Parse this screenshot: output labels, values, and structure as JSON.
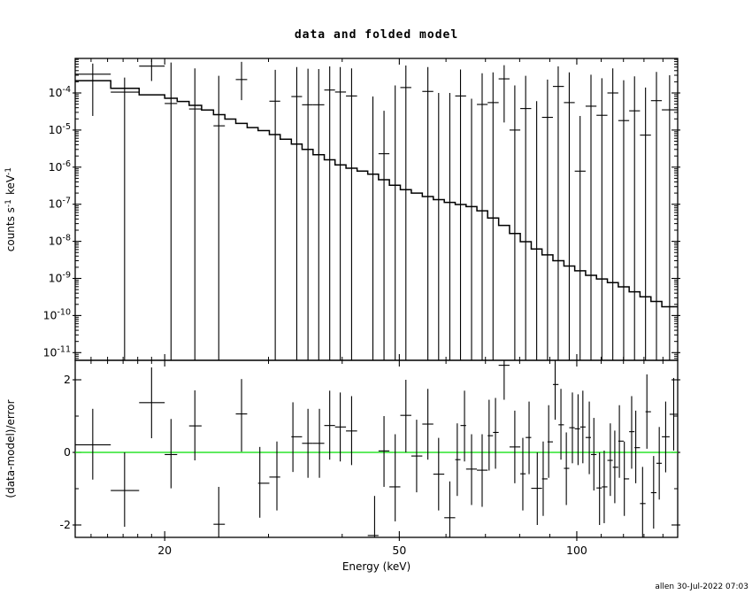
{
  "title": "data and folded model",
  "timestamp": "allen 30-Jul-2022 07:03",
  "chart_data": {
    "type": "line",
    "title": "data and folded model",
    "description": "X-ray spectrum: data points with error bars and folded model histogram (top, log-log), plus (data-model)/error residuals (bottom). Green line marks zero residual.",
    "x_axis": {
      "label": "Energy (keV)",
      "scale": "log",
      "range": [
        14.1,
        148.3
      ],
      "ticks": [
        20,
        50,
        100
      ],
      "tick_labels": [
        "20",
        "50",
        "100"
      ],
      "minor_ticks": [
        15,
        16,
        17,
        18,
        19,
        30,
        40,
        60,
        70,
        80,
        90,
        110,
        120,
        130,
        140
      ]
    },
    "top_panel": {
      "ylabel_parts": [
        [
          "counts s",
          false
        ],
        [
          "-1",
          true
        ],
        [
          " keV",
          false
        ],
        [
          "-1",
          true
        ]
      ],
      "scale": "log",
      "log_range": [
        -11.21,
        -3.07
      ],
      "decade_ticks": [
        -4,
        -5,
        -6,
        -7,
        -8,
        -9,
        -10,
        -11
      ],
      "decade_tick_labels": [
        "-4",
        "-5",
        "-6",
        "-7",
        "-8",
        "-9",
        "-10",
        "-11"
      ],
      "model_color": "#000000",
      "model_anchors": [
        [
          14.1,
          -3.59
        ],
        [
          16.2,
          -3.75
        ],
        [
          18.1,
          -4.0
        ],
        [
          20,
          -4.1
        ],
        [
          22,
          -4.27
        ],
        [
          24,
          -4.5
        ],
        [
          26,
          -4.72
        ],
        [
          28,
          -4.92
        ],
        [
          30,
          -5.05
        ],
        [
          33,
          -5.33
        ],
        [
          36,
          -5.62
        ],
        [
          40,
          -5.96
        ],
        [
          45,
          -6.18
        ],
        [
          50,
          -6.55
        ],
        [
          55,
          -6.76
        ],
        [
          60,
          -6.93
        ],
        [
          68,
          -7.1
        ],
        [
          75,
          -7.55
        ],
        [
          84,
          -8.14
        ],
        [
          95,
          -8.6
        ],
        [
          105,
          -8.9
        ],
        [
          118,
          -9.17
        ],
        [
          133,
          -9.55
        ],
        [
          148.3,
          -9.85
        ]
      ],
      "model_bin_edges": [
        14.1,
        16.2,
        18.1,
        20.0,
        21.0,
        22.0,
        23.1,
        24.2,
        25.3,
        26.4,
        27.6,
        28.8,
        30.1,
        31.4,
        32.8,
        34.2,
        35.7,
        37.3,
        38.9,
        40.6,
        42.4,
        44.2,
        46.1,
        48.1,
        50.2,
        52.4,
        54.7,
        57.1,
        59.6,
        62.2,
        64.9,
        67.7,
        70.6,
        73.7,
        76.9,
        80.2,
        83.7,
        87.3,
        91.1,
        95.1,
        99.2,
        103.5,
        108.0,
        112.7,
        117.6,
        122.7,
        128.0,
        133.6,
        139.4,
        148.3
      ],
      "points_columns": [
        "energy_keV",
        "e_lo",
        "e_hi",
        "flux",
        "err_top",
        "err_bottom_null_means_clipped"
      ],
      "points": [
        [
          15.1,
          14.1,
          16.2,
          0.00032,
          0.00062,
          2.4e-05
        ],
        [
          17.1,
          16.2,
          18.1,
          0.000105,
          0.00026,
          null
        ],
        [
          19.0,
          18.1,
          20.0,
          0.00053,
          0.00078,
          0.00021
        ],
        [
          20.5,
          20.0,
          21.0,
          5.2e-05,
          0.00066,
          null
        ],
        [
          22.5,
          22.0,
          23.1,
          3.7e-05,
          0.00046,
          null
        ],
        [
          24.7,
          24.2,
          25.3,
          1.3e-05,
          0.00029,
          null
        ],
        [
          27.0,
          26.4,
          27.6,
          0.00023,
          0.00069,
          6.4e-05
        ],
        [
          30.8,
          30.1,
          31.4,
          6e-05,
          0.00042,
          null
        ],
        [
          33.5,
          32.8,
          34.2,
          8e-05,
          0.0005,
          null
        ],
        [
          35.0,
          34.2,
          35.7,
          4.8e-05,
          0.00045,
          null
        ],
        [
          36.5,
          35.7,
          37.3,
          4.8e-05,
          0.00044,
          null
        ],
        [
          38.1,
          37.3,
          38.9,
          0.00012,
          0.00052,
          null
        ],
        [
          39.7,
          38.9,
          40.6,
          0.000106,
          0.0005,
          null
        ],
        [
          41.5,
          40.6,
          42.4,
          8.3e-05,
          0.00046,
          null
        ],
        [
          45.1,
          44.2,
          46.1,
          null,
          8e-05,
          null
        ],
        [
          47.1,
          46.1,
          48.1,
          2.3e-06,
          3.3e-05,
          null
        ],
        [
          49.2,
          48.1,
          50.2,
          null,
          0.00016,
          null
        ],
        [
          51.3,
          50.2,
          52.4,
          0.00014,
          0.00055,
          null
        ],
        [
          55.9,
          54.7,
          57.1,
          0.00011,
          0.0005,
          null
        ],
        [
          58.3,
          57.1,
          59.6,
          null,
          0.0001,
          null
        ],
        [
          60.9,
          59.6,
          62.2,
          null,
          0.0001,
          null
        ],
        [
          63.5,
          62.2,
          64.9,
          8.3e-05,
          0.00043,
          null
        ],
        [
          66.3,
          64.9,
          67.7,
          null,
          7e-05,
          null
        ],
        [
          69.1,
          67.7,
          70.6,
          4.9e-05,
          0.00034,
          null
        ],
        [
          72.1,
          70.6,
          73.7,
          5.5e-05,
          0.00036,
          null
        ],
        [
          75.3,
          73.7,
          76.9,
          0.00024,
          0.00056,
          1.6e-05
        ],
        [
          78.5,
          76.9,
          80.2,
          1e-05,
          0.00016,
          null
        ],
        [
          81.9,
          80.2,
          83.7,
          3.8e-05,
          0.00029,
          null
        ],
        [
          85.5,
          83.7,
          87.3,
          null,
          6e-05,
          null
        ],
        [
          89.2,
          87.3,
          91.1,
          2.2e-05,
          0.00023,
          null
        ],
        [
          93.0,
          91.1,
          95.1,
          0.00015,
          0.00052,
          null
        ],
        [
          97.1,
          95.1,
          99.2,
          5.5e-05,
          0.00036,
          null
        ],
        [
          101.3,
          99.2,
          103.5,
          7.8e-07,
          2.4e-05,
          null
        ],
        [
          105.7,
          103.5,
          108.0,
          4.4e-05,
          0.00031,
          null
        ],
        [
          110.3,
          108.0,
          112.7,
          2.5e-05,
          0.00025,
          null
        ],
        [
          115.1,
          112.7,
          117.6,
          0.0001,
          0.00046,
          null
        ],
        [
          120.1,
          117.6,
          122.7,
          1.8e-05,
          0.00022,
          null
        ],
        [
          125.3,
          122.7,
          128.0,
          3.3e-05,
          0.00028,
          null
        ],
        [
          130.8,
          128.0,
          133.6,
          7.3e-06,
          0.00014,
          null
        ],
        [
          136.5,
          133.6,
          139.4,
          6.2e-05,
          0.00037,
          null
        ],
        [
          143.7,
          139.4,
          148.3,
          3.5e-05,
          0.0003,
          null
        ]
      ]
    },
    "residual_panel": {
      "ylabel": "(data-model)/error",
      "range": [
        -2.34,
        2.52
      ],
      "ticks": [
        2,
        0,
        -2
      ],
      "tick_labels": [
        "2",
        "0",
        "-2"
      ],
      "minor_ticks": [
        1,
        -1
      ],
      "zero_line_color": "#00DD00",
      "points_columns": [
        "energy_keV",
        "e_lo",
        "e_hi",
        "residual",
        "err_lo_null_means_clipped",
        "err_hi_null_means_clipped"
      ],
      "points": [
        [
          15.1,
          14.1,
          16.2,
          0.21,
          -0.75,
          1.2
        ],
        [
          17.1,
          16.2,
          18.1,
          -1.05,
          -2.05,
          0.0
        ],
        [
          19.0,
          18.1,
          20.0,
          1.37,
          0.39,
          2.34
        ],
        [
          20.5,
          20.0,
          21.0,
          -0.06,
          -0.99,
          0.92
        ],
        [
          22.5,
          22.0,
          23.1,
          0.73,
          -0.22,
          1.71
        ],
        [
          24.7,
          24.2,
          25.3,
          -1.98,
          null,
          -0.95
        ],
        [
          27.0,
          26.4,
          27.6,
          1.06,
          0.02,
          2.02
        ],
        [
          29.0,
          28.8,
          30.1,
          -0.85,
          -1.8,
          0.15
        ],
        [
          31.0,
          30.1,
          31.4,
          -0.68,
          -1.6,
          0.3
        ],
        [
          33.0,
          32.8,
          34.2,
          0.43,
          -0.54,
          1.38
        ],
        [
          35.0,
          34.2,
          35.7,
          0.25,
          -0.7,
          1.2
        ],
        [
          36.6,
          35.7,
          37.3,
          0.25,
          -0.7,
          1.2
        ],
        [
          38.1,
          37.3,
          38.9,
          0.74,
          -0.2,
          1.7
        ],
        [
          39.7,
          38.9,
          40.6,
          0.7,
          -0.25,
          1.65
        ],
        [
          41.5,
          40.6,
          42.4,
          0.59,
          -0.35,
          1.55
        ],
        [
          45.4,
          44.2,
          46.1,
          -2.29,
          null,
          -1.2
        ],
        [
          47.1,
          46.1,
          48.1,
          0.04,
          -0.95,
          1.0
        ],
        [
          49.2,
          48.1,
          50.2,
          -0.95,
          -1.9,
          0.5
        ],
        [
          51.3,
          50.2,
          52.4,
          1.02,
          0.0,
          2.0
        ],
        [
          53.5,
          52.4,
          54.7,
          -0.1,
          -1.1,
          0.9
        ],
        [
          55.9,
          54.7,
          57.1,
          0.78,
          -0.2,
          1.75
        ],
        [
          58.3,
          57.1,
          59.6,
          -0.6,
          -1.6,
          0.4
        ],
        [
          60.9,
          59.6,
          62.2,
          -1.8,
          null,
          -0.8
        ],
        [
          62.7,
          62.2,
          63.5,
          -0.2,
          -1.2,
          0.8
        ],
        [
          64.5,
          63.5,
          64.9,
          0.74,
          -0.25,
          1.7
        ],
        [
          66.3,
          64.9,
          67.7,
          -0.46,
          -1.45,
          0.5
        ],
        [
          69.1,
          67.7,
          70.6,
          -0.49,
          -1.5,
          0.5
        ],
        [
          71.0,
          70.6,
          72.1,
          0.46,
          -0.5,
          1.45
        ],
        [
          72.8,
          72.1,
          73.7,
          0.55,
          -0.45,
          1.5
        ],
        [
          75.3,
          73.7,
          76.9,
          2.4,
          1.45,
          null
        ],
        [
          78.5,
          76.9,
          80.2,
          0.15,
          -0.85,
          1.15
        ],
        [
          81.0,
          80.2,
          81.9,
          -0.59,
          -1.6,
          0.4
        ],
        [
          83.0,
          81.9,
          83.7,
          0.41,
          -0.6,
          1.4
        ],
        [
          85.7,
          83.7,
          87.3,
          -0.99,
          -2.0,
          0.0
        ],
        [
          87.7,
          87.3,
          89.2,
          -0.73,
          -1.75,
          0.3
        ],
        [
          89.6,
          89.2,
          91.1,
          0.29,
          -0.7,
          1.3
        ],
        [
          91.9,
          91.1,
          93.1,
          1.87,
          0.9,
          null
        ],
        [
          94.0,
          93.1,
          95.1,
          0.76,
          -0.2,
          1.75
        ],
        [
          96.0,
          95.1,
          97.1,
          -0.44,
          -1.45,
          0.55
        ],
        [
          98.3,
          97.1,
          99.2,
          0.68,
          -0.3,
          1.65
        ],
        [
          100.5,
          99.2,
          101.3,
          0.65,
          -0.35,
          1.6
        ],
        [
          102.4,
          101.3,
          103.5,
          0.7,
          -0.3,
          1.7
        ],
        [
          105.0,
          103.5,
          105.7,
          0.41,
          -0.6,
          1.4
        ],
        [
          106.9,
          105.7,
          108.0,
          -0.06,
          -1.05,
          0.95
        ],
        [
          109.3,
          108.0,
          110.3,
          -0.98,
          -2.0,
          0.0
        ],
        [
          111.3,
          110.3,
          112.7,
          -0.95,
          -1.95,
          0.05
        ],
        [
          114.0,
          112.7,
          115.1,
          -0.22,
          -1.2,
          0.8
        ],
        [
          116.0,
          115.1,
          117.6,
          -0.41,
          -1.4,
          0.6
        ],
        [
          118.1,
          117.6,
          120.1,
          0.31,
          -0.7,
          1.3
        ],
        [
          120.4,
          120.1,
          122.7,
          -0.73,
          -1.75,
          0.3
        ],
        [
          123.9,
          122.7,
          125.3,
          0.57,
          -0.45,
          1.55
        ],
        [
          125.9,
          125.3,
          128.0,
          0.13,
          -0.85,
          1.15
        ],
        [
          129.3,
          128.0,
          130.8,
          -1.41,
          null,
          -0.4
        ],
        [
          131.5,
          130.8,
          133.6,
          1.12,
          0.1,
          2.15
        ],
        [
          135.0,
          133.6,
          136.5,
          -1.11,
          -2.1,
          -0.1
        ],
        [
          138.0,
          136.5,
          139.4,
          -0.3,
          -1.3,
          0.7
        ],
        [
          141.5,
          139.4,
          143.7,
          0.43,
          -0.55,
          1.4
        ],
        [
          146.0,
          143.7,
          148.3,
          1.05,
          0.05,
          2.05
        ]
      ]
    }
  }
}
